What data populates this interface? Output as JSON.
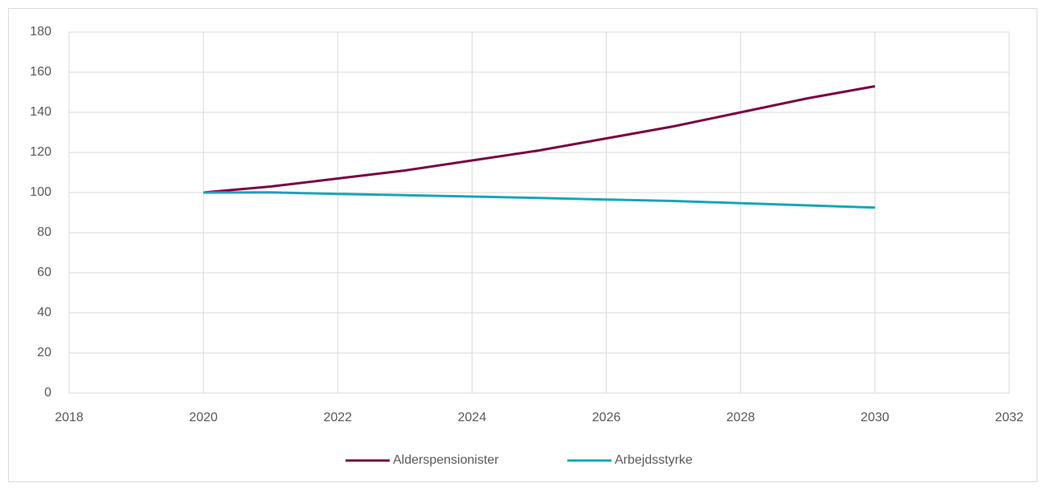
{
  "chart_data": {
    "type": "line",
    "x": [
      2020,
      2021,
      2022,
      2023,
      2024,
      2025,
      2026,
      2027,
      2028,
      2029,
      2030
    ],
    "series": [
      {
        "name": "Alderspensionister",
        "color": "#7b0043",
        "values": [
          100,
          103,
          107,
          111,
          116,
          121,
          127,
          133,
          140,
          147,
          153
        ]
      },
      {
        "name": "Arbejdsstyrke",
        "color": "#17a5b9",
        "values": [
          100,
          100.1,
          99.3,
          98.7,
          98,
          97.3,
          96.5,
          95.8,
          94.7,
          93.6,
          92.5
        ]
      }
    ],
    "xlim": [
      2018,
      2032
    ],
    "xticks": [
      2018,
      2020,
      2022,
      2024,
      2026,
      2028,
      2030,
      2032
    ],
    "ylim": [
      0,
      180
    ],
    "yticks": [
      0,
      20,
      40,
      60,
      80,
      100,
      120,
      140,
      160,
      180
    ],
    "grid": true,
    "legend": "bottom"
  }
}
